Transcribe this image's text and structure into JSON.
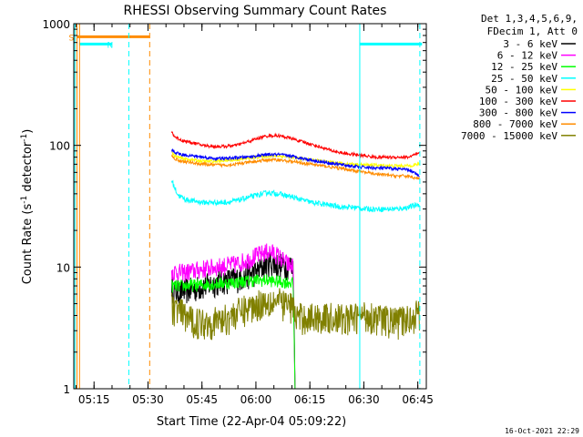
{
  "chart_data": {
    "type": "line",
    "title": "RHESSI Observing Summary Count Rates",
    "xlabel": "Start Time (22-Apr-04 05:09:22)",
    "ylabel_main": "Count Rate (s",
    "ylabel_sup1": "-1",
    "ylabel_mid": " detector",
    "ylabel_sup2": "-1",
    "ylabel_end": ")",
    "footer": "16-Oct-2021 22:29",
    "legend_header": [
      "Det 1,3,4,5,6,9,",
      "FDecim 1, Att 0"
    ],
    "x_range_minutes": [
      0,
      98
    ],
    "x_ticks": [
      {
        "label": "05:15",
        "min": 5.63
      },
      {
        "label": "05:30",
        "min": 20.63
      },
      {
        "label": "05:45",
        "min": 35.63
      },
      {
        "label": "06:00",
        "min": 50.63
      },
      {
        "label": "06:15",
        "min": 65.63
      },
      {
        "label": "06:30",
        "min": 80.63
      },
      {
        "label": "06:45",
        "min": 95.63
      }
    ],
    "y_scale": "log",
    "y_range": [
      1,
      1000
    ],
    "y_ticks": [
      {
        "label": "1",
        "v": 1
      },
      {
        "label": "10",
        "v": 10
      },
      {
        "label": "100",
        "v": 100
      },
      {
        "label": "1000",
        "v": 1000
      }
    ],
    "data_start_min": 27.2,
    "data_end_min": 96.2,
    "series": [
      {
        "name": "3 - 6 keV",
        "color": "#000000",
        "x": [
          27.2,
          28,
          30,
          33,
          36,
          39,
          42,
          45,
          48,
          51,
          54,
          57,
          60,
          61,
          61.5,
          63,
          66,
          69,
          72,
          75,
          77,
          77.5,
          78,
          78.5,
          79,
          80,
          81,
          82,
          84,
          87,
          90,
          93,
          96.2
        ],
        "y": [
          7.2,
          6.3,
          6.4,
          6.6,
          7.0,
          7.4,
          7.8,
          8.0,
          8.5,
          9.2,
          11.0,
          10.5,
          10.3,
          10.2,
          1,
          1,
          1,
          1,
          1,
          1,
          1,
          1,
          1,
          1,
          1,
          1,
          1,
          1,
          1,
          1,
          1,
          1,
          1
        ]
      },
      {
        "name": "6 - 12 keV",
        "color": "#ff00ff",
        "x": [
          27.2,
          30,
          33,
          36,
          39,
          42,
          45,
          48,
          51,
          54,
          56,
          58,
          60,
          61,
          61.5,
          63,
          66,
          69,
          72,
          75,
          78,
          81,
          84,
          87,
          90,
          93,
          96.2
        ],
        "y": [
          9.3,
          9.0,
          9.3,
          9.7,
          10.0,
          10.3,
          10.6,
          11.4,
          12.5,
          13.5,
          13.0,
          11.5,
          10.3,
          10.2,
          1,
          1,
          1,
          1,
          1,
          1,
          1,
          1,
          1,
          1,
          1,
          1,
          1
        ]
      },
      {
        "name": "12 - 25 keV",
        "color": "#00ff00",
        "x": [
          27.2,
          30,
          33,
          36,
          39,
          42,
          45,
          48,
          51,
          54,
          57,
          60,
          61,
          61.5,
          63,
          66,
          69,
          72,
          75,
          78,
          81,
          84,
          87,
          90,
          93,
          96.2
        ],
        "y": [
          7.0,
          7.0,
          7.1,
          7.2,
          7.3,
          7.4,
          7.5,
          7.7,
          7.8,
          7.8,
          7.6,
          7.5,
          7.4,
          1,
          1,
          1,
          1,
          1,
          1,
          1,
          1,
          1,
          1,
          1,
          1,
          1
        ]
      },
      {
        "name": "25 - 50 keV",
        "color": "#00ffff",
        "x": [
          27.2,
          28,
          29,
          31,
          33,
          36,
          39,
          42,
          45,
          48,
          51,
          54,
          57,
          60,
          63,
          66,
          69,
          72,
          75,
          78,
          81,
          84,
          87,
          90,
          93,
          96.2
        ],
        "y": [
          52,
          45,
          39,
          36,
          35,
          34,
          34,
          34,
          35,
          37,
          39,
          41,
          40,
          38,
          36,
          34,
          33,
          32,
          31,
          31,
          30,
          30,
          30,
          30,
          31,
          33
        ]
      },
      {
        "name": "50 - 100 keV",
        "color": "#ffff00",
        "x": [
          27.2,
          28,
          30,
          33,
          36,
          39,
          42,
          45,
          48,
          51,
          54,
          57,
          60,
          63,
          66,
          69,
          72,
          75,
          78,
          81,
          84,
          87,
          90,
          93,
          96.2
        ],
        "y": [
          88,
          82,
          78,
          76,
          74,
          74,
          75,
          76,
          78,
          80,
          82,
          82,
          80,
          78,
          76,
          74,
          72,
          71,
          70,
          69,
          69,
          68,
          68,
          68,
          70
        ]
      },
      {
        "name": "100 - 300 keV",
        "color": "#ff0000",
        "x": [
          27.2,
          28,
          30,
          33,
          36,
          39,
          42,
          45,
          48,
          51,
          54,
          57,
          60,
          63,
          66,
          69,
          72,
          75,
          78,
          81,
          84,
          87,
          90,
          93,
          96.2
        ],
        "y": [
          130,
          118,
          110,
          105,
          100,
          98,
          98,
          100,
          106,
          114,
          120,
          120,
          115,
          108,
          102,
          96,
          90,
          86,
          84,
          82,
          80,
          80,
          80,
          80,
          86
        ]
      },
      {
        "name": "300 - 800 keV",
        "color": "#0000ff",
        "x": [
          27.2,
          28,
          30,
          33,
          36,
          39,
          42,
          45,
          48,
          51,
          54,
          57,
          60,
          63,
          66,
          69,
          72,
          75,
          78,
          81,
          84,
          87,
          90,
          93,
          96.2
        ],
        "y": [
          92,
          88,
          84,
          82,
          80,
          78,
          78,
          79,
          80,
          82,
          84,
          84,
          82,
          79,
          76,
          73,
          71,
          69,
          67,
          66,
          65,
          65,
          64,
          63,
          56
        ]
      },
      {
        "name": "800 - 7000 keV",
        "color": "#ff8c00",
        "x": [
          27.2,
          28,
          30,
          33,
          36,
          39,
          42,
          45,
          48,
          51,
          54,
          57,
          60,
          63,
          66,
          69,
          72,
          75,
          78,
          81,
          84,
          87,
          90,
          93,
          96.2
        ],
        "y": [
          82,
          78,
          74,
          72,
          70,
          69,
          69,
          70,
          72,
          74,
          76,
          76,
          74,
          72,
          70,
          68,
          66,
          64,
          62,
          60,
          58,
          57,
          56,
          56,
          53
        ]
      },
      {
        "name": "7000 - 15000 keV",
        "color": "#808000",
        "x": [
          27.2,
          28,
          30,
          33,
          36,
          39,
          42,
          45,
          48,
          51,
          54,
          57,
          60,
          61,
          61.5,
          63,
          66,
          69,
          72,
          75,
          78,
          81,
          84,
          87,
          90,
          93,
          96.2
        ],
        "y": [
          4.8,
          4.6,
          4.2,
          3.6,
          3.6,
          3.6,
          3.8,
          4.2,
          4.6,
          5.0,
          5.4,
          5.2,
          4.9,
          4.8,
          4.0,
          3.9,
          3.9,
          3.9,
          3.9,
          3.8,
          3.9,
          4.1,
          3.9,
          3.7,
          3.6,
          3.8,
          4.3
        ]
      }
    ],
    "flag_bars": [
      {
        "label": "S",
        "color": "#ff8c00",
        "x0": 0.9,
        "x1": 21.2,
        "y": 780
      },
      {
        "label": "N",
        "color": "#00ffff",
        "x0": 1.5,
        "x1": 10.5,
        "y": 680
      },
      {
        "label": "",
        "color": "#00ffff",
        "x0": 79.5,
        "x1": 96.8,
        "y": 680
      }
    ],
    "vlines": [
      {
        "color": "#ff8c00",
        "style": "solid",
        "min": 0.9
      },
      {
        "color": "#ff8c00",
        "style": "solid",
        "min": 1.6
      },
      {
        "color": "#00ffff",
        "style": "solid",
        "min": 0.3
      },
      {
        "color": "#00ffff",
        "style": "dashed",
        "min": 15.3
      },
      {
        "color": "#ff8c00",
        "style": "dashed",
        "min": 21.1
      },
      {
        "color": "#00ffff",
        "style": "solid",
        "min": 79.5
      },
      {
        "color": "#00ffff",
        "style": "dashed",
        "min": 96.2
      }
    ]
  }
}
